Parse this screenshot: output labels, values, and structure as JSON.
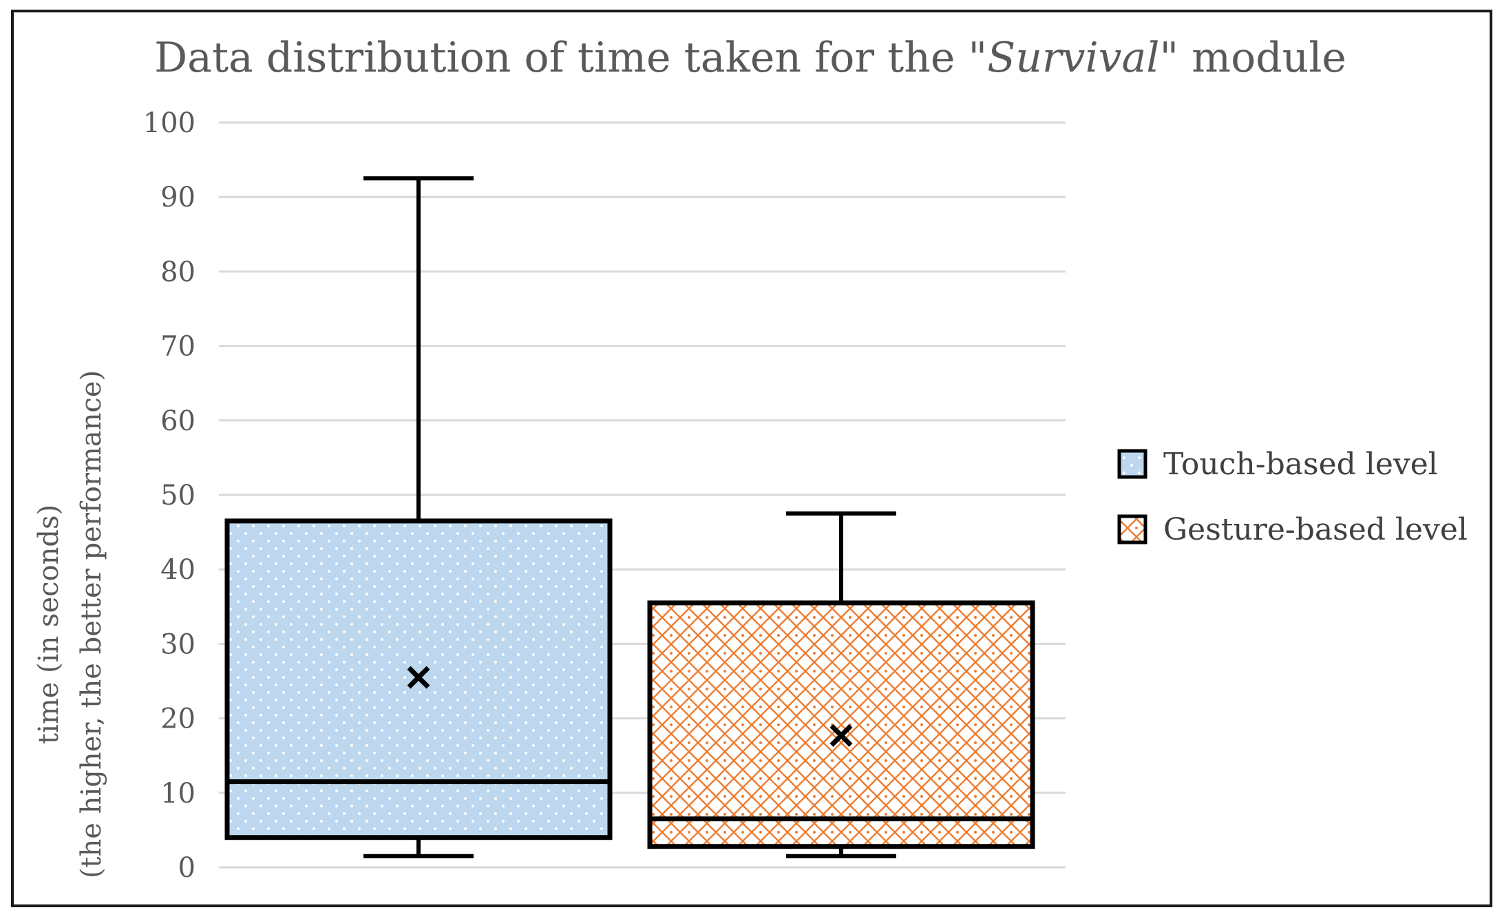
{
  "chart_data": {
    "type": "box",
    "title_prefix": "Data distribution of time taken for the \"",
    "title_emph": "Survival",
    "title_suffix": "\" module",
    "ylabel_line1": "time (in seconds)",
    "ylabel_line2": "(the higher, the better performance)",
    "ylim": [
      0,
      100
    ],
    "yticks": [
      0,
      10,
      20,
      30,
      40,
      50,
      60,
      70,
      80,
      90,
      100
    ],
    "grid": true,
    "legend_position": "right",
    "series": [
      {
        "name": "Touch-based level",
        "min": 1.5,
        "q1": 4,
        "median": 11.5,
        "q3": 46.5,
        "max": 92.5,
        "mean": 25.5,
        "color": "#bdd7ee",
        "pattern": "dots"
      },
      {
        "name": "Gesture-based level",
        "min": 1.5,
        "q1": 2.8,
        "median": 6.5,
        "q3": 35.5,
        "max": 47.5,
        "mean": 17.7,
        "color": "#ed7d31",
        "pattern": "diamond-lattice"
      }
    ],
    "colors": {
      "grid": "#d9d9d9",
      "axis_text": "#595959",
      "box_stroke": "#000000"
    }
  }
}
